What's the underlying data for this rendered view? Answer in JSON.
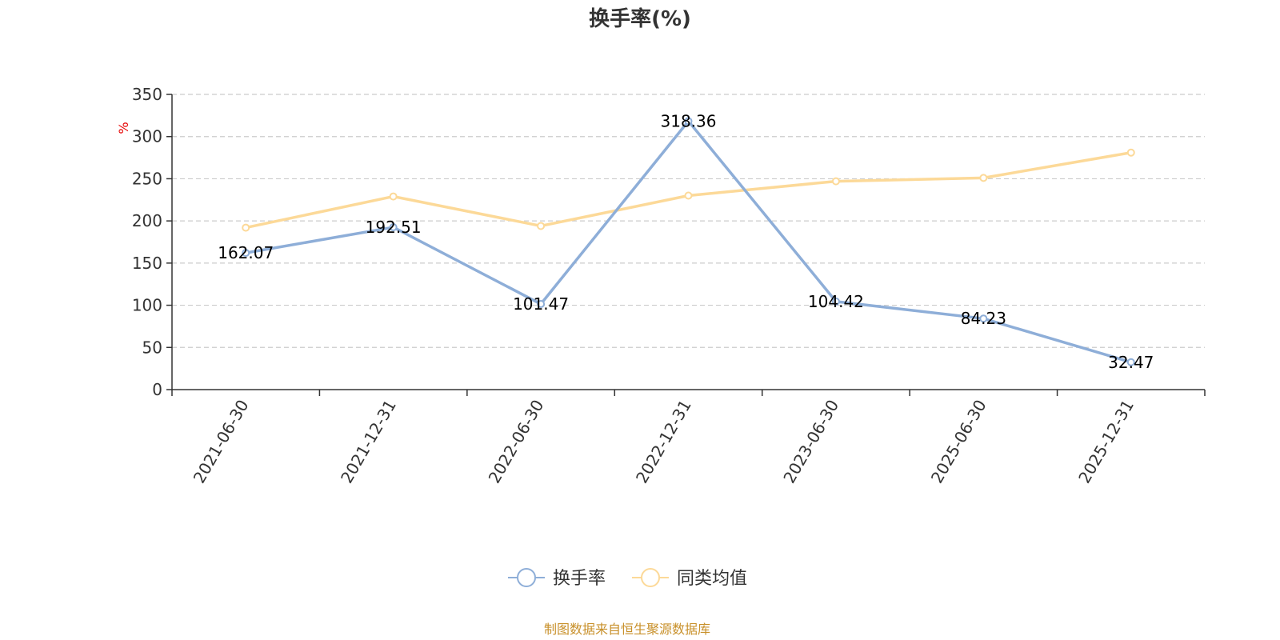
{
  "chart_data": {
    "type": "line",
    "title": "换手率(%)",
    "ylabel": "%",
    "categories": [
      "2021-06-30",
      "2021-12-31",
      "2022-06-30",
      "2022-12-31",
      "2023-06-30",
      "2025-06-30",
      "2025-12-31"
    ],
    "ylim": [
      0,
      350
    ],
    "yticks": [
      0,
      50,
      100,
      150,
      200,
      250,
      300,
      350
    ],
    "grid": true,
    "legend_position": "bottom",
    "series": [
      {
        "name": "换手率",
        "color": "#8eaed8",
        "values": [
          162.07,
          192.51,
          101.47,
          318.36,
          104.42,
          84.23,
          32.47
        ],
        "labels": [
          "162.07",
          "192.51",
          "101.47",
          "318.36",
          "104.42",
          "84.23",
          "32.47"
        ],
        "show_labels": true
      },
      {
        "name": "同类均值",
        "color": "#fcd998",
        "values": [
          192,
          229,
          194,
          230,
          247,
          251,
          281
        ],
        "show_labels": false
      }
    ]
  },
  "source": "制图数据来自恒生聚源数据库"
}
